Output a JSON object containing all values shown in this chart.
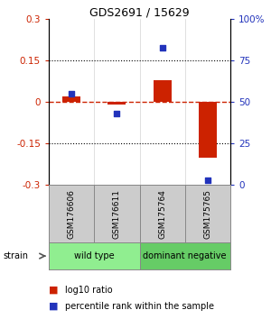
{
  "title": "GDS2691 / 15629",
  "samples": [
    "GSM176606",
    "GSM176611",
    "GSM175764",
    "GSM175765"
  ],
  "log10_ratio": [
    0.02,
    -0.01,
    0.08,
    -0.2
  ],
  "percentile_rank": [
    55,
    43,
    83,
    3
  ],
  "groups": [
    {
      "label": "wild type",
      "samples": [
        0,
        1
      ],
      "color": "#90EE90"
    },
    {
      "label": "dominant negative",
      "samples": [
        2,
        3
      ],
      "color": "#66CC66"
    }
  ],
  "ylim": [
    -0.3,
    0.3
  ],
  "y2lim": [
    0,
    100
  ],
  "yticks": [
    -0.3,
    -0.15,
    0,
    0.15,
    0.3
  ],
  "y2ticks": [
    0,
    25,
    50,
    75,
    100
  ],
  "bar_color": "#CC2200",
  "dot_color": "#2233BB",
  "ref_line_color": "#CC2200",
  "legend_bar_label": "log10 ratio",
  "legend_dot_label": "percentile rank within the sample",
  "strain_label": "strain",
  "sample_box_color": "#CCCCCC",
  "bar_width": 0.4,
  "dot_size": 22
}
